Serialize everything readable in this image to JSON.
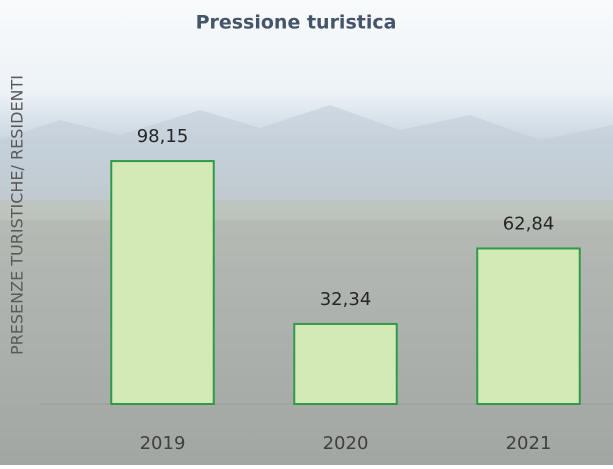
{
  "chart_data": {
    "type": "bar",
    "title": "Pressione turistica",
    "y_label": "PRESENZE TURISTICHE/ RESIDENTI",
    "categories": [
      "2019",
      "2020",
      "2021"
    ],
    "values": [
      98.15,
      32.34,
      62.84
    ],
    "value_labels": [
      "98,15",
      "32,34",
      "62,84"
    ],
    "color": "#d4eab6",
    "edge_color": "#2e9a4a",
    "ylim": [
      0,
      120
    ]
  }
}
